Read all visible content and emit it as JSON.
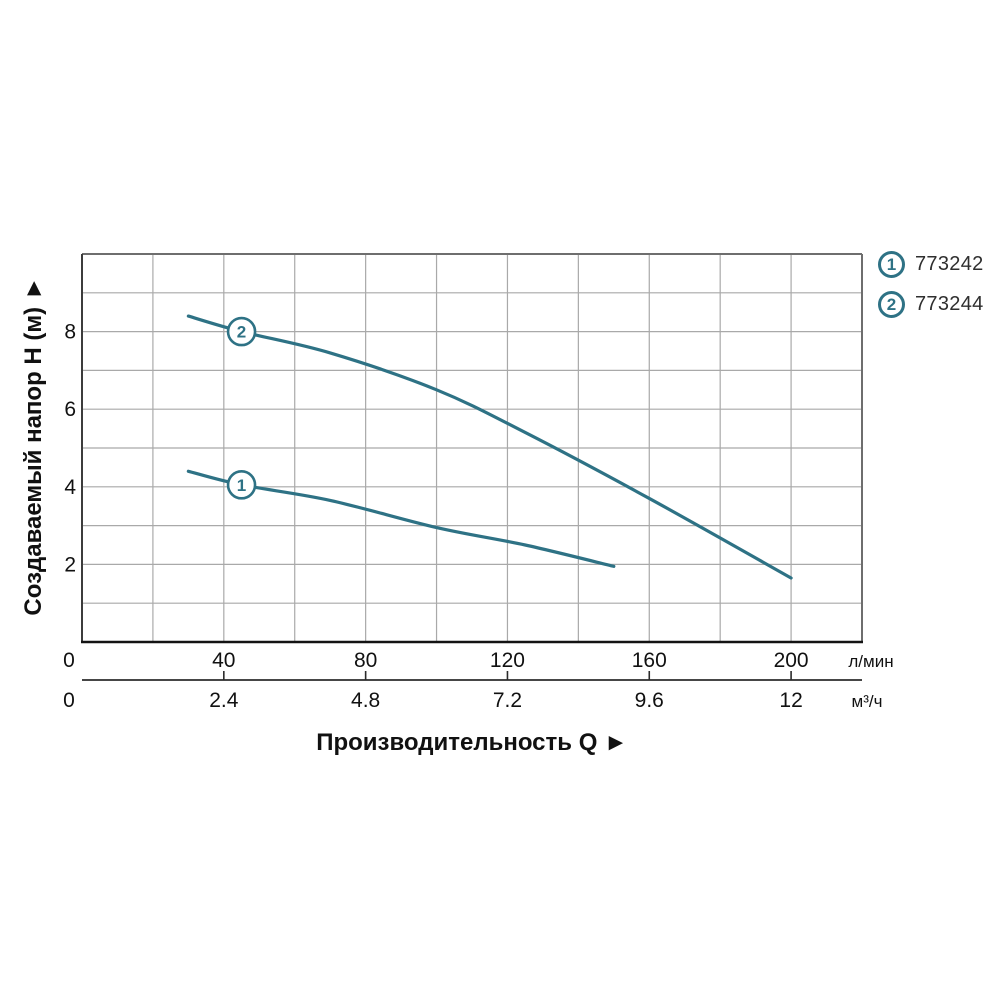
{
  "chart_data": {
    "type": "line",
    "title": "",
    "y_axis": {
      "label": "Создаваемый напор H (м) ►",
      "ticks": [
        2,
        4,
        6,
        8
      ],
      "origin_label": "0",
      "range": [
        0,
        10
      ],
      "grid_step": 1
    },
    "x_axis": {
      "label": "Производительность Q ►",
      "primary": {
        "unit": "л/мин",
        "ticks": [
          0,
          40,
          80,
          120,
          160,
          200
        ],
        "range": [
          0,
          220
        ],
        "grid_step": 20
      },
      "secondary": {
        "unit": "м³/ч",
        "ticks": [
          0,
          2.4,
          4.8,
          7.2,
          9.6,
          12
        ]
      }
    },
    "series": [
      {
        "id": "1",
        "label": "773242",
        "marker_q": 45,
        "points": [
          [
            30,
            4.4
          ],
          [
            45,
            4.05
          ],
          [
            70,
            3.65
          ],
          [
            100,
            2.95
          ],
          [
            125,
            2.5
          ],
          [
            150,
            1.95
          ]
        ]
      },
      {
        "id": "2",
        "label": "773244",
        "marker_q": 45,
        "points": [
          [
            30,
            8.4
          ],
          [
            45,
            8.0
          ],
          [
            70,
            7.45
          ],
          [
            100,
            6.5
          ],
          [
            125,
            5.4
          ],
          [
            160,
            3.7
          ],
          [
            200,
            1.65
          ]
        ]
      }
    ],
    "legend": [
      {
        "symbol": "1",
        "label": "773242"
      },
      {
        "symbol": "2",
        "label": "773244"
      }
    ],
    "grid": true,
    "legend_position": "top-right",
    "colors": {
      "curve": "#2e7285",
      "grid": "#a9a9a9",
      "border_dark": "#3c3c3c",
      "border_light": "#6e6e6e",
      "axis_bottom": "#131313",
      "secondary_axis": "#2b2b2b",
      "tick_text": "#111111",
      "legend_text": "#2f2f2f"
    }
  }
}
